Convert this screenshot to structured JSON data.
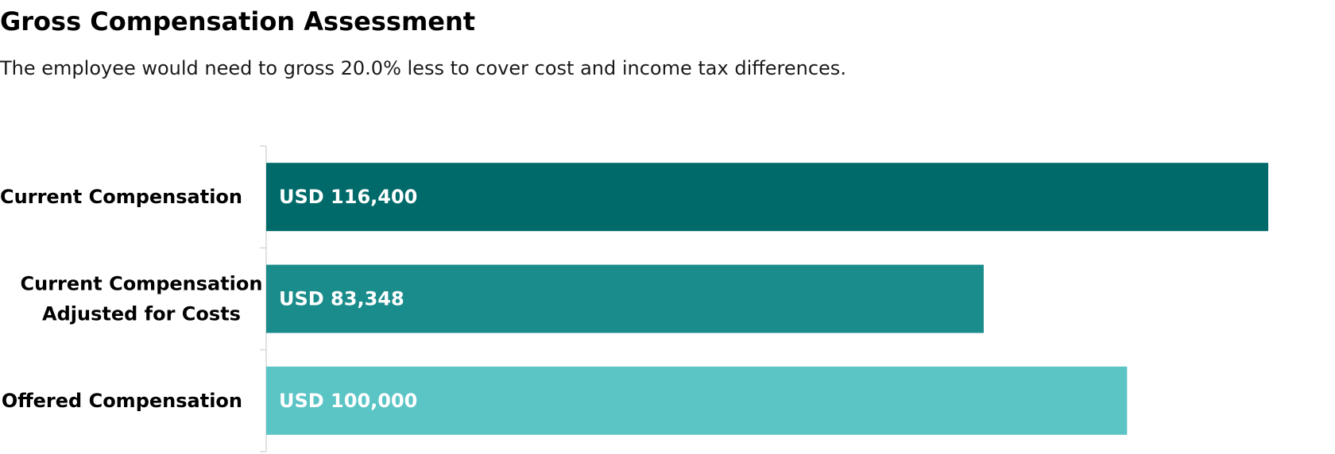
{
  "chart_data": {
    "type": "bar",
    "orientation": "horizontal",
    "title": "Gross Compensation Assessment",
    "subtitle": "The employee would need to gross 20.0% less to cover cost and income tax differences.",
    "categories": [
      [
        "Current Compensation"
      ],
      [
        "Current Compensation",
        "Adjusted for Costs"
      ],
      [
        "Offered Compensation"
      ]
    ],
    "values": [
      116400,
      83348,
      100000
    ],
    "data_labels": [
      "USD 116,400",
      "USD 83,348",
      "USD 100,000"
    ],
    "colors": [
      "#006a6a",
      "#1b8c8c",
      "#5bc4c5"
    ],
    "axis_color": "#d9d9d9",
    "xlim": [
      0,
      116400
    ],
    "grid": false,
    "legend": "none"
  }
}
